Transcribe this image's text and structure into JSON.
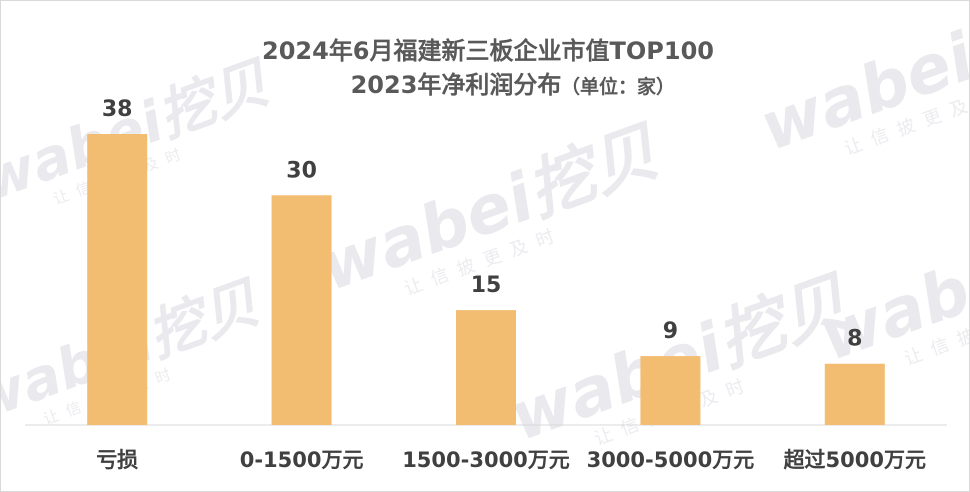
{
  "watermark": {
    "brand": "wabei挖贝",
    "slogan": "让信披更及时"
  },
  "chart_data": {
    "type": "bar",
    "title_line1": "2024年6月福建新三板企业市值TOP100",
    "title_line2": "2023年净利润分布",
    "unit_note": "（单位：家）",
    "categories": [
      "亏损",
      "0-1500万元",
      "1500-3000万元",
      "3000-5000万元",
      "超过5000万元"
    ],
    "values": [
      38,
      30,
      15,
      9,
      8
    ],
    "xlabel": "",
    "ylabel": "",
    "ylim": [
      0,
      38
    ],
    "grid": false,
    "legend": "none",
    "colors": {
      "bar": "#F2BC71",
      "axis": "#d9d9d9",
      "text": "#404040",
      "title": "#595959"
    }
  }
}
